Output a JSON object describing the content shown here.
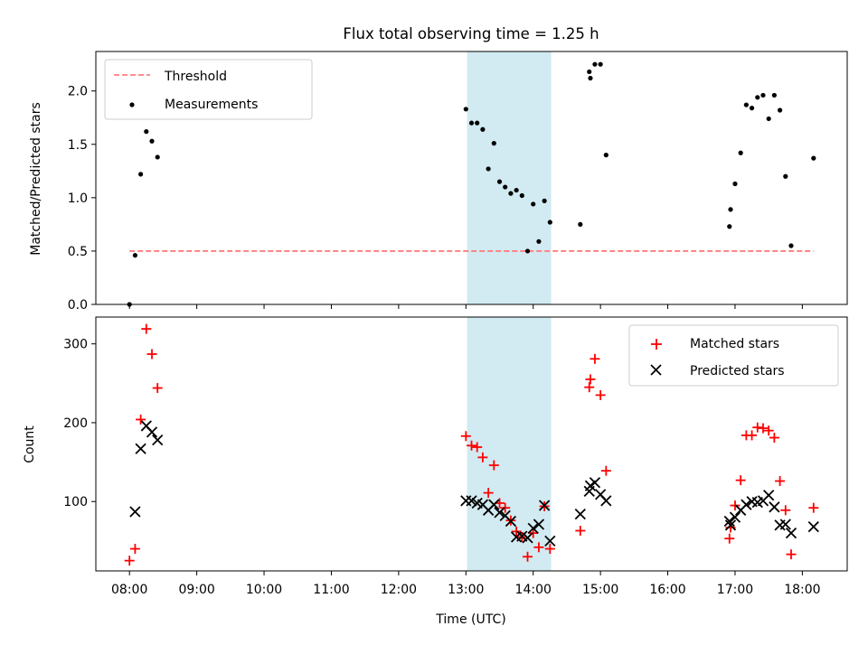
{
  "chart_data": {
    "title": "Flux total observing time = 1.25 h",
    "xlabel": "Time (UTC)",
    "x_ticks": [
      "08:00",
      "09:00",
      "10:00",
      "11:00",
      "12:00",
      "13:00",
      "14:00",
      "15:00",
      "16:00",
      "17:00",
      "18:00"
    ],
    "x_range": [
      "07:30",
      "18:40"
    ],
    "shaded_interval": {
      "start": "13:01",
      "end": "14:16",
      "color": "#add8e6"
    },
    "panels": [
      {
        "type": "scatter",
        "ylabel": "Matched/Predicted stars",
        "ylim": [
          0,
          2.37
        ],
        "y_ticks": [
          "0.0",
          "0.5",
          "1.0",
          "1.5",
          "2.0"
        ],
        "legend_position": "top-left",
        "threshold": {
          "name": "Threshold",
          "value": 0.5,
          "x_start": "08:00",
          "x_end": "18:10",
          "color": "#ff7f7f"
        },
        "series": [
          {
            "name": "Measurements",
            "color": "#000000",
            "points": [
              [
                "08:00",
                0.0
              ],
              [
                "08:05",
                0.46
              ],
              [
                "08:10",
                1.22
              ],
              [
                "08:15",
                1.62
              ],
              [
                "08:20",
                1.53
              ],
              [
                "08:25",
                1.38
              ],
              [
                "13:00",
                1.83
              ],
              [
                "13:05",
                1.7
              ],
              [
                "13:10",
                1.7
              ],
              [
                "13:15",
                1.64
              ],
              [
                "13:20",
                1.27
              ],
              [
                "13:25",
                1.51
              ],
              [
                "13:30",
                1.15
              ],
              [
                "13:35",
                1.1
              ],
              [
                "13:40",
                1.04
              ],
              [
                "13:45",
                1.07
              ],
              [
                "13:50",
                1.02
              ],
              [
                "13:55",
                0.5
              ],
              [
                "14:00",
                0.94
              ],
              [
                "14:05",
                0.59
              ],
              [
                "14:10",
                0.97
              ],
              [
                "14:15",
                0.77
              ],
              [
                "14:42",
                0.75
              ],
              [
                "14:50",
                2.18
              ],
              [
                "14:51",
                2.12
              ],
              [
                "14:55",
                2.25
              ],
              [
                "15:00",
                2.25
              ],
              [
                "15:05",
                1.4
              ],
              [
                "16:55",
                0.73
              ],
              [
                "16:56",
                0.89
              ],
              [
                "17:00",
                1.13
              ],
              [
                "17:05",
                1.42
              ],
              [
                "17:10",
                1.87
              ],
              [
                "17:15",
                1.84
              ],
              [
                "17:20",
                1.94
              ],
              [
                "17:25",
                1.96
              ],
              [
                "17:30",
                1.74
              ],
              [
                "17:35",
                1.96
              ],
              [
                "17:40",
                1.82
              ],
              [
                "17:45",
                1.2
              ],
              [
                "17:50",
                0.55
              ],
              [
                "18:10",
                1.37
              ]
            ]
          }
        ]
      },
      {
        "type": "scatter",
        "ylabel": "Count",
        "ylim": [
          12,
          334
        ],
        "y_ticks": [
          "100",
          "200",
          "300"
        ],
        "legend_position": "top-right",
        "series": [
          {
            "name": "Matched stars",
            "color": "#ff0000",
            "marker": "+",
            "points": [
              [
                "08:00",
                25
              ],
              [
                "08:05",
                40
              ],
              [
                "08:10",
                204
              ],
              [
                "08:15",
                319
              ],
              [
                "08:20",
                287
              ],
              [
                "08:25",
                244
              ],
              [
                "13:00",
                183
              ],
              [
                "13:05",
                171
              ],
              [
                "13:10",
                169
              ],
              [
                "13:15",
                156
              ],
              [
                "13:20",
                111
              ],
              [
                "13:25",
                146
              ],
              [
                "13:30",
                98
              ],
              [
                "13:35",
                92
              ],
              [
                "13:40",
                76
              ],
              [
                "13:45",
                62
              ],
              [
                "13:50",
                55
              ],
              [
                "13:55",
                30
              ],
              [
                "14:00",
                60
              ],
              [
                "14:05",
                42
              ],
              [
                "14:10",
                94
              ],
              [
                "14:15",
                40
              ],
              [
                "14:42",
                63
              ],
              [
                "14:50",
                245
              ],
              [
                "14:51",
                255
              ],
              [
                "14:55",
                281
              ],
              [
                "15:00",
                235
              ],
              [
                "15:05",
                139
              ],
              [
                "16:55",
                53
              ],
              [
                "16:56",
                67
              ],
              [
                "17:00",
                95
              ],
              [
                "17:05",
                127
              ],
              [
                "17:10",
                184
              ],
              [
                "17:15",
                184
              ],
              [
                "17:20",
                194
              ],
              [
                "17:25",
                193
              ],
              [
                "17:30",
                190
              ],
              [
                "17:35",
                181
              ],
              [
                "17:40",
                126
              ],
              [
                "17:45",
                89
              ],
              [
                "17:50",
                33
              ],
              [
                "18:10",
                92
              ]
            ]
          },
          {
            "name": "Predicted stars",
            "color": "#000000",
            "marker": "x",
            "points": [
              [
                "08:05",
                87
              ],
              [
                "08:10",
                167
              ],
              [
                "08:15",
                196
              ],
              [
                "08:20",
                188
              ],
              [
                "08:25",
                178
              ],
              [
                "13:00",
                101
              ],
              [
                "13:05",
                101
              ],
              [
                "13:10",
                98
              ],
              [
                "13:15",
                96
              ],
              [
                "13:20",
                89
              ],
              [
                "13:25",
                96
              ],
              [
                "13:30",
                86
              ],
              [
                "13:35",
                82
              ],
              [
                "13:40",
                75
              ],
              [
                "13:45",
                55
              ],
              [
                "13:50",
                56
              ],
              [
                "13:55",
                54
              ],
              [
                "14:00",
                66
              ],
              [
                "14:05",
                71
              ],
              [
                "14:10",
                95
              ],
              [
                "14:15",
                50
              ],
              [
                "14:42",
                84
              ],
              [
                "14:50",
                113
              ],
              [
                "14:51",
                120
              ],
              [
                "14:55",
                124
              ],
              [
                "15:00",
                109
              ],
              [
                "15:05",
                101
              ],
              [
                "16:55",
                75
              ],
              [
                "16:56",
                70
              ],
              [
                "17:00",
                80
              ],
              [
                "17:05",
                89
              ],
              [
                "17:10",
                96
              ],
              [
                "17:15",
                100
              ],
              [
                "17:20",
                99
              ],
              [
                "17:25",
                101
              ],
              [
                "17:30",
                108
              ],
              [
                "17:35",
                93
              ],
              [
                "17:40",
                70
              ],
              [
                "17:45",
                71
              ],
              [
                "17:50",
                60
              ],
              [
                "18:10",
                68
              ]
            ]
          }
        ]
      }
    ]
  }
}
